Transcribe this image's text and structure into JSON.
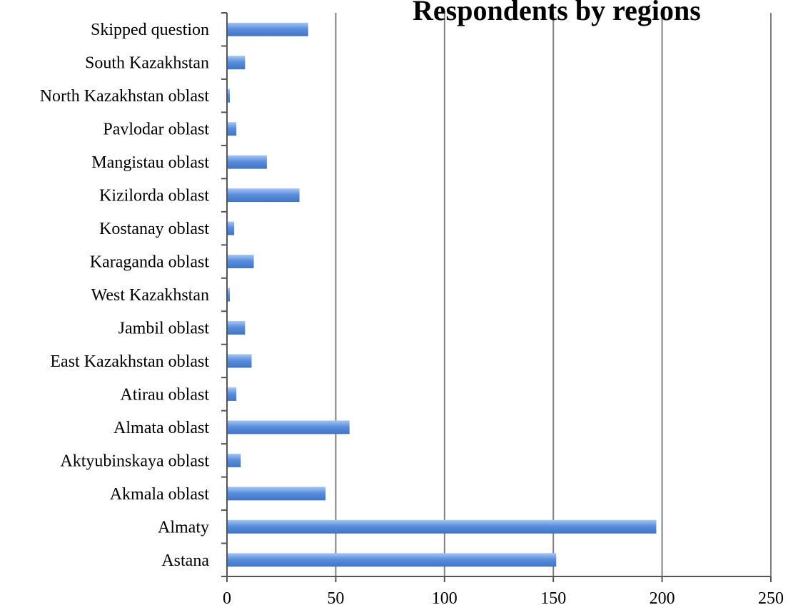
{
  "chart_data": {
    "type": "bar",
    "orientation": "horizontal",
    "title": "Respondents by regions",
    "categories": [
      "Astana",
      "Almaty",
      "Akmala oblast",
      "Aktyubinskaya oblast",
      "Almata oblast",
      "Atirau oblast",
      "East Kazakhstan oblast",
      "Jambil oblast",
      "West Kazakhstan",
      "Karaganda oblast",
      "Kostanay oblast",
      "Kizilorda oblast",
      "Mangistau oblast",
      "Pavlodar oblast",
      "North Kazakhstan oblast",
      "South Kazakhstan",
      "Skipped question"
    ],
    "values": [
      151,
      197,
      45,
      6,
      56,
      4,
      11,
      8,
      1,
      12,
      3,
      33,
      18,
      4,
      1,
      8,
      37
    ],
    "xlim": [
      0,
      250
    ],
    "xticks": [
      0,
      50,
      100,
      150,
      200,
      250
    ],
    "xlabel": "",
    "ylabel": "",
    "grid": true,
    "legend": "none",
    "colors": {
      "bar": "#5b8fdc",
      "bar_light": "#a9c6f2",
      "bar_dark": "#3f74c6",
      "grid": "#808080",
      "axis": "#555555",
      "text": "#000000"
    }
  }
}
